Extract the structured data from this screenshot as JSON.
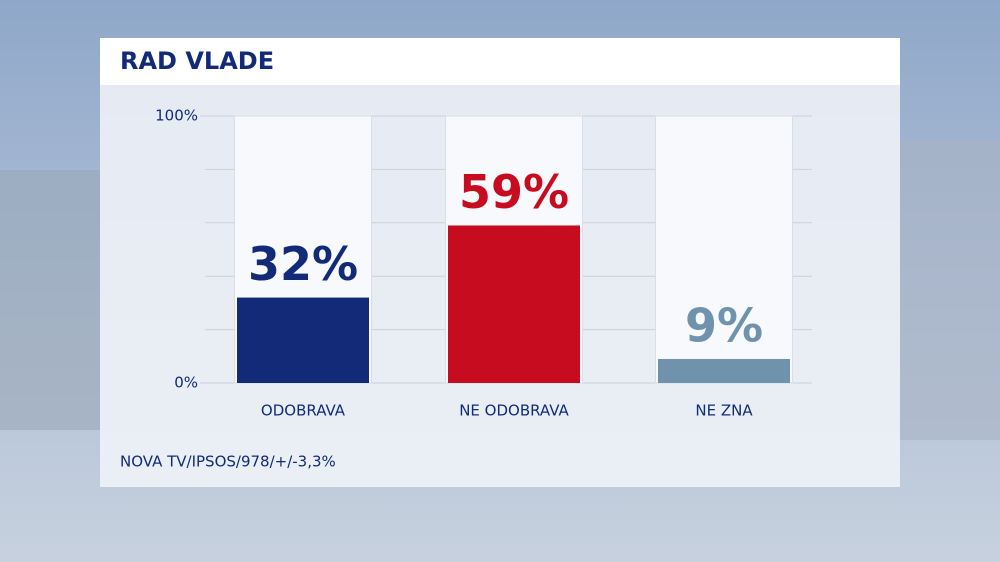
{
  "chart_data": {
    "type": "bar",
    "title": "RAD VLADE",
    "categories": [
      "ODOBRAVA",
      "NE ODOBRAVA",
      "NE ZNA"
    ],
    "values": [
      32,
      59,
      9
    ],
    "value_labels": [
      "32%",
      "59%",
      "9%"
    ],
    "colors": [
      "#122a78",
      "#c70c1f",
      "#6f93ad"
    ],
    "label_colors": [
      "#122a78",
      "#c70c1f",
      "#6f93ad"
    ],
    "ylim": [
      0,
      100
    ],
    "yticks": [
      {
        "value": 0,
        "label": "0%"
      },
      {
        "value": 100,
        "label": "100%"
      }
    ],
    "ygrid": [
      0,
      20,
      40,
      60,
      80,
      100
    ],
    "source": "NOVA TV/IPSOS/978/+/-3,3%"
  }
}
